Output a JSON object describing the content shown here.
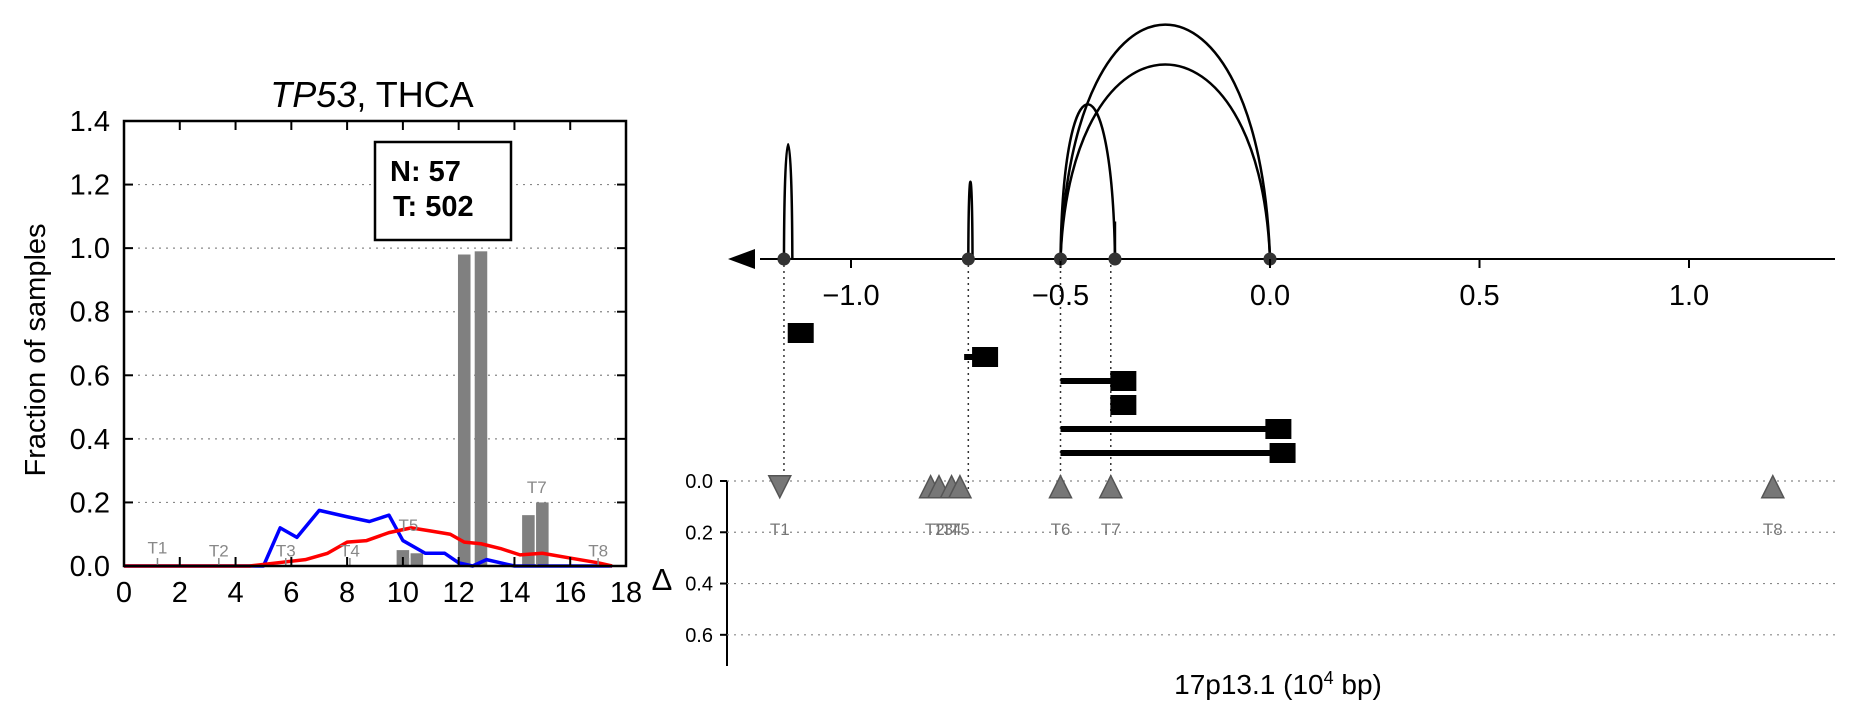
{
  "chart_data": [
    {
      "type": "bar",
      "title_gene": "TP53",
      "title_rest": ", THCA",
      "xlabel": "",
      "ylabel": "Fraction of samples",
      "xlim": [
        0,
        18
      ],
      "ylim": [
        0,
        1.4
      ],
      "xticks": [
        "0",
        "2",
        "4",
        "6",
        "8",
        "10",
        "12",
        "14",
        "16",
        "18"
      ],
      "yticks": [
        "0.0",
        "0.2",
        "0.4",
        "0.6",
        "0.8",
        "1.0",
        "1.2",
        "1.4"
      ],
      "grid": "horizontal dotted",
      "counts": {
        "n_label": "N: 57",
        "t_label": "T: 502"
      },
      "bars": {
        "color": "#808080",
        "x": [
          10.0,
          10.5,
          12.2,
          12.8,
          14.5,
          15.0
        ],
        "values": [
          0.05,
          0.04,
          0.98,
          0.99,
          0.16,
          0.2
        ]
      },
      "transcript_labels": [
        {
          "label": "T1",
          "x": 1.2,
          "y": 0.04
        },
        {
          "label": "T2",
          "x": 3.4,
          "y": 0.03
        },
        {
          "label": "T3",
          "x": 5.8,
          "y": 0.03
        },
        {
          "label": "T4",
          "x": 8.1,
          "y": 0.03
        },
        {
          "label": "T5",
          "x": 10.2,
          "y": 0.11
        },
        {
          "label": "T7",
          "x": 14.8,
          "y": 0.23
        },
        {
          "label": "T8",
          "x": 17.0,
          "y": 0.03
        }
      ],
      "series": [
        {
          "color": "#0000ff",
          "x": [
            0,
            5,
            5.6,
            6.2,
            7.0,
            8.0,
            8.8,
            9.5,
            10.0,
            10.8,
            11.5,
            12.0,
            12.5,
            13.0,
            14.0,
            15.0,
            17.5
          ],
          "values": [
            0,
            0,
            0.12,
            0.09,
            0.175,
            0.155,
            0.14,
            0.16,
            0.08,
            0.04,
            0.04,
            0.01,
            0.0,
            0.02,
            0,
            0,
            0
          ]
        },
        {
          "color": "#ff0000",
          "x": [
            0,
            4.5,
            5.5,
            6.5,
            7.3,
            8.0,
            8.7,
            9.5,
            10.3,
            11.0,
            11.7,
            12.2,
            12.8,
            13.5,
            14.2,
            15.0,
            16.0,
            17.0,
            17.5
          ],
          "values": [
            0,
            0,
            0.01,
            0.02,
            0.04,
            0.075,
            0.08,
            0.105,
            0.12,
            0.11,
            0.1,
            0.075,
            0.07,
            0.055,
            0.035,
            0.04,
            0.025,
            0.01,
            0.0
          ]
        }
      ]
    },
    {
      "type": "line",
      "xlabel": "17p13.1 (10",
      "xlabel_sup": "4",
      "xlabel_tail": " bp)",
      "ylabel": "Δ",
      "xlim": [
        -1.3,
        1.35
      ],
      "xticks": [
        "−1.0",
        "−0.5",
        "0.0",
        "0.5",
        "1.0"
      ],
      "xtick_values": [
        -1.0,
        -0.5,
        0.0,
        0.5,
        1.0
      ],
      "ylim": [
        0,
        0.7
      ],
      "yticks": [
        "0.0",
        "0.2",
        "0.4",
        "0.6"
      ],
      "ytick_values": [
        0.0,
        0.2,
        0.4,
        0.6
      ],
      "grid": "horizontal dotted",
      "junction_points": [
        -1.16,
        -0.72,
        -0.5,
        -0.37,
        0.0
      ],
      "arcs": [
        {
          "x1": -1.16,
          "x2": -1.14,
          "height": 0.46
        },
        {
          "x1": -0.72,
          "x2": -0.71,
          "height": 0.31
        },
        {
          "x1": -0.5,
          "x2": -0.37,
          "height": 0.62
        },
        {
          "x1": -0.5,
          "x2": 0.0,
          "height": 0.94
        },
        {
          "x1": -0.5,
          "x2": 0.0,
          "height": 0.78
        },
        {
          "x1": -0.37,
          "x2": -0.37,
          "height": 0.15
        }
      ],
      "transcripts": [
        {
          "start": -1.15,
          "end": -1.12
        },
        {
          "start": -0.73,
          "end": -0.68
        },
        {
          "start": -0.5,
          "end": -0.35
        },
        {
          "start": -0.37,
          "end": -0.35
        },
        {
          "start": -0.5,
          "end": 0.02
        },
        {
          "start": -0.5,
          "end": 0.03
        }
      ],
      "markers": [
        {
          "label": "T1",
          "x": -1.17,
          "delta": 0.03,
          "shape": "down"
        },
        {
          "label": "T2",
          "x": -0.81,
          "delta": 0.03,
          "shape": "up"
        },
        {
          "label": "T3",
          "x": -0.79,
          "delta": 0.03,
          "shape": "up"
        },
        {
          "label": "T4",
          "x": -0.76,
          "delta": 0.03,
          "shape": "up"
        },
        {
          "label": "T5",
          "x": -0.74,
          "delta": 0.03,
          "shape": "up"
        },
        {
          "label": "T6",
          "x": -0.5,
          "delta": 0.03,
          "shape": "up"
        },
        {
          "label": "T7",
          "x": -0.38,
          "delta": 0.03,
          "shape": "up"
        },
        {
          "label": "T8",
          "x": 1.2,
          "delta": 0.03,
          "shape": "up"
        }
      ],
      "label_positions": [
        {
          "label": "T1",
          "x": -1.17
        },
        {
          "label": "T2",
          "x": -0.8
        },
        {
          "label": "T3",
          "x": -0.78
        },
        {
          "label": "T4",
          "x": -0.76
        },
        {
          "label": "T5",
          "x": -0.74
        },
        {
          "label": "T6",
          "x": -0.5
        },
        {
          "label": "T7",
          "x": -0.38
        },
        {
          "label": "T8",
          "x": 1.2
        }
      ]
    }
  ]
}
